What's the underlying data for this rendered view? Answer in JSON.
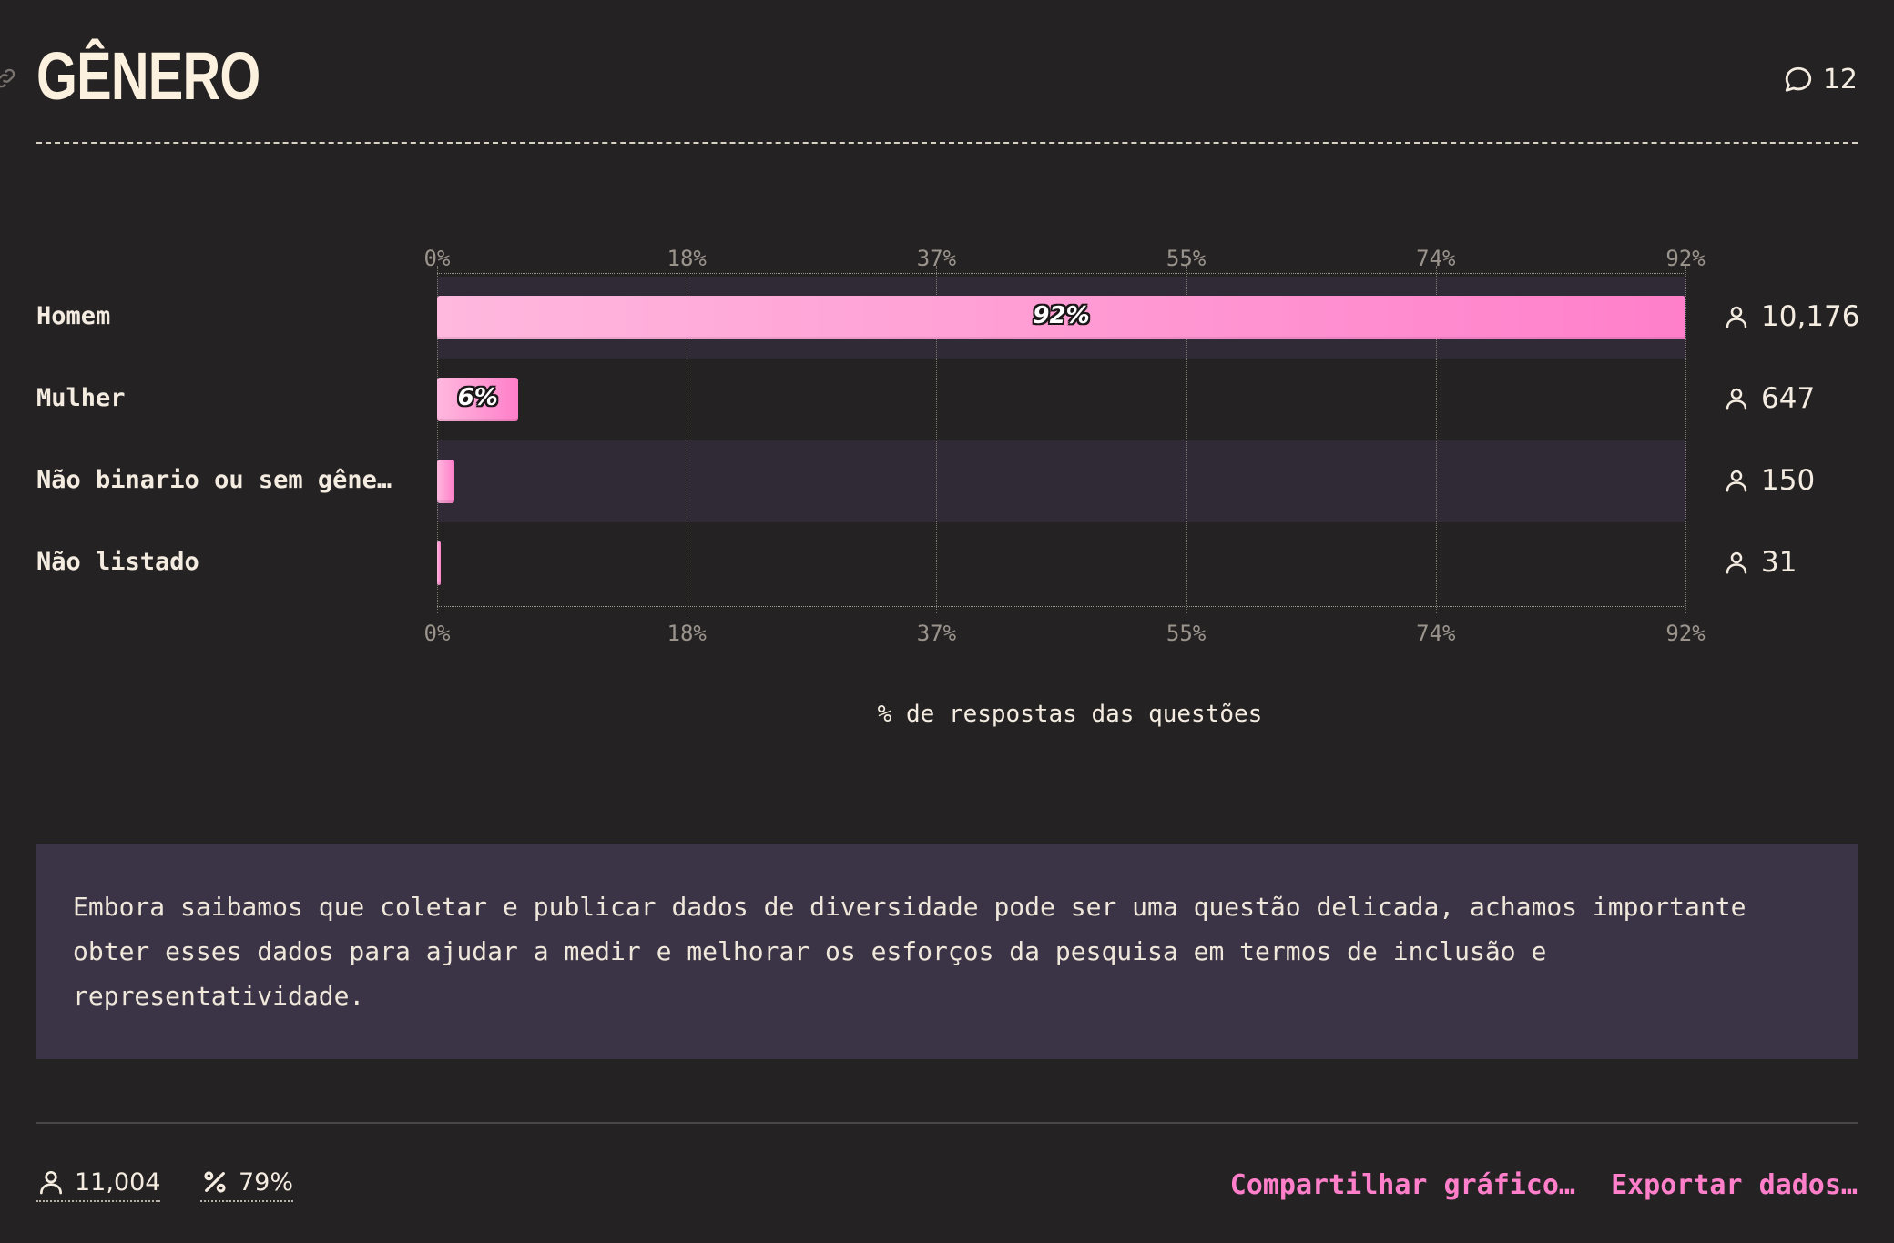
{
  "header": {
    "title": "GÊNERO",
    "comment_count": "12"
  },
  "chart_data": {
    "type": "bar",
    "orientation": "horizontal",
    "categories": [
      "Homem",
      "Mulher",
      "Não binario ou sem gênero…",
      "Não listado"
    ],
    "values": [
      92,
      6,
      1.3,
      0.3
    ],
    "value_labels": [
      "92%",
      "6%",
      "",
      ""
    ],
    "counts": [
      "10,176",
      "647",
      "150",
      "31"
    ],
    "xlim": [
      0,
      92
    ],
    "ticks": [
      "0%",
      "18%",
      "37%",
      "55%",
      "74%",
      "92%"
    ],
    "xlabel": "% de respostas das questões",
    "grid": true,
    "bar_color_start": "#ffb8de",
    "bar_color_end": "#ff7fca"
  },
  "note": {
    "text": "Embora saibamos que coletar e publicar dados de diversidade pode ser uma questão delicada, achamos importante obter esses dados para ajudar a medir e melhorar os esforços da pesquisa em termos de inclusão e representatividade."
  },
  "footer": {
    "respondents": "11,004",
    "percentage": "79%",
    "share_label": "Compartilhar gráfico…",
    "export_label": "Exportar dados…"
  },
  "icons": {
    "link": "link-icon",
    "comment": "comment-icon",
    "user": "user-icon",
    "percent": "percent-icon"
  },
  "colors": {
    "background": "#252224",
    "accent": "#ff7fca",
    "note_background": "#3b3446"
  }
}
